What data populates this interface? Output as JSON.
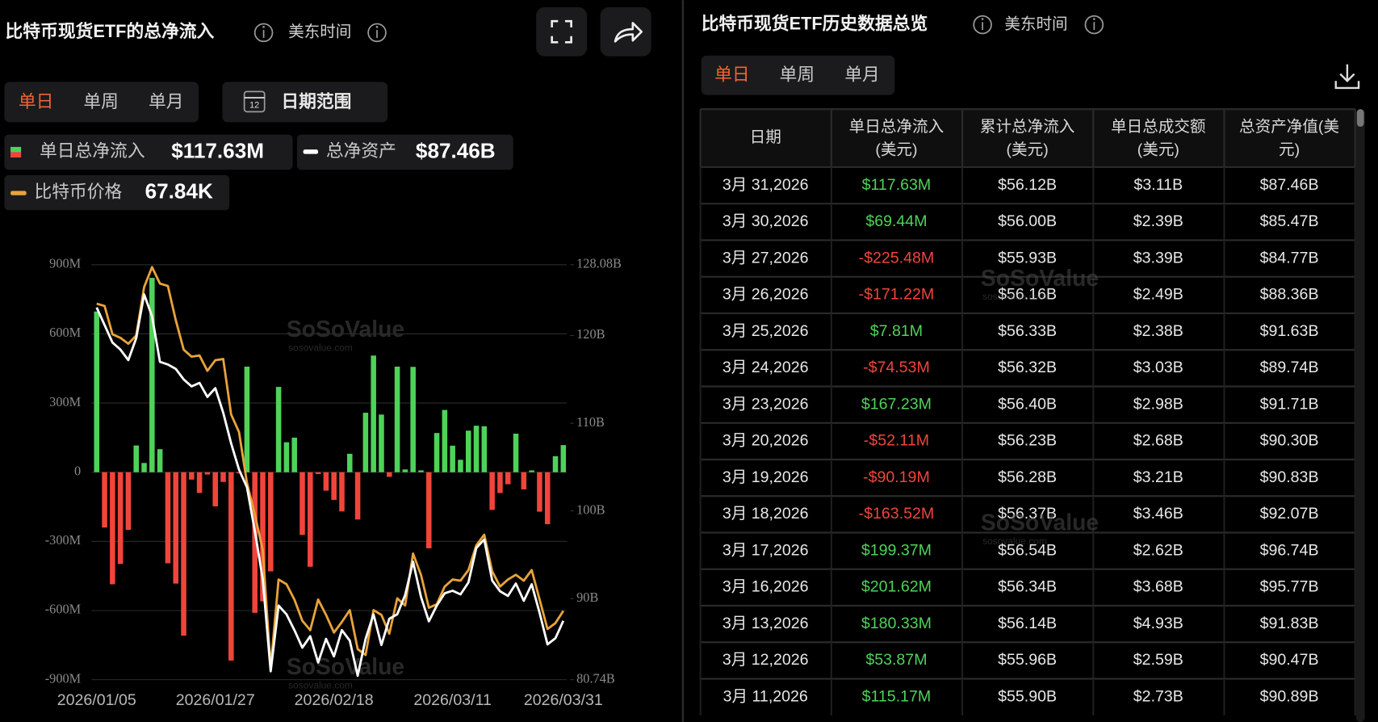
{
  "left_panel": {
    "title": "比特币现货ETF的总净流入",
    "timezone": "美东时间",
    "tabs": [
      "单日",
      "单周",
      "单月"
    ],
    "date_range": "日期范围",
    "watermark": "SoSoValue",
    "watermark_url": "sosovalue.com"
  },
  "chart_data": {
    "type": "bar-line",
    "categories": [
      "2026/01/05",
      null,
      null,
      null,
      null,
      null,
      null,
      null,
      null,
      null,
      null,
      null,
      null,
      null,
      null,
      "2026/01/27",
      null,
      null,
      null,
      null,
      null,
      null,
      null,
      null,
      null,
      null,
      null,
      null,
      null,
      null,
      "2026/02/18",
      null,
      null,
      null,
      null,
      null,
      null,
      null,
      null,
      null,
      null,
      null,
      null,
      null,
      null,
      "2026/03/11",
      null,
      null,
      null,
      null,
      null,
      null,
      null,
      null,
      null,
      null,
      null,
      null,
      null,
      "2026/03/31"
    ],
    "series": [
      {
        "name": "单日总净流入",
        "type": "bar",
        "legend_value": "$117.63M",
        "color": "#4fd25a",
        "negative_color": "#f0453b",
        "values": [
          697,
          -240,
          -486,
          -398,
          -250,
          116,
          40,
          843,
          100,
          -395,
          -483,
          -709,
          -32,
          -90,
          -10,
          -148,
          -42,
          -817,
          -5,
          458,
          -610,
          -560,
          -430,
          370,
          130,
          150,
          -272,
          -410,
          -8,
          -80,
          -120,
          -170,
          80,
          -205,
          258,
          506,
          250,
          -20,
          458,
          12,
          457,
          8,
          -330,
          170,
          270,
          115.17,
          53.87,
          180.33,
          201.62,
          199.37,
          -163.52,
          -90.19,
          -52.11,
          167.23,
          -74.53,
          7.81,
          -171.22,
          -225.48,
          69.44,
          117.63
        ]
      },
      {
        "name": "总净资产",
        "type": "line",
        "axis": "y2",
        "legend_value": "$87.46B",
        "color": "#ffffff",
        "values": [
          123.2,
          121.2,
          119.2,
          118.4,
          117.2,
          119.7,
          124.7,
          122.2,
          117.0,
          116.7,
          116.2,
          115.0,
          114.2,
          114.6,
          113.0,
          114.0,
          111.2,
          107.7,
          104.7,
          102.7,
          97.7,
          92.2,
          81.7,
          89.2,
          88.2,
          86.4,
          84.4,
          85.7,
          82.7,
          85.4,
          83.4,
          86.4,
          85.2,
          81.2,
          85.4,
          88.2,
          84.7,
          87.7,
          88.2,
          90.4,
          94.2,
          90.2,
          87.4,
          89.2,
          90.6,
          90.89,
          90.47,
          91.83,
          95.77,
          96.74,
          92.07,
          90.83,
          90.3,
          91.71,
          89.74,
          91.63,
          88.36,
          84.77,
          85.47,
          87.46
        ]
      },
      {
        "name": "比特币价格",
        "type": "line",
        "axis": "y3",
        "legend_value": "67.84K",
        "color": "#e8a33a",
        "values": [
          93.9,
          93.7,
          91.3,
          91.0,
          90.5,
          91.2,
          95.3,
          97.0,
          95.6,
          95.4,
          92.5,
          90.0,
          89.4,
          89.5,
          88.2,
          89.1,
          89.2,
          84.5,
          83.0,
          78.7,
          76.0,
          73.0,
          63.0,
          70.5,
          70.1,
          68.8,
          67.0,
          66.2,
          68.8,
          67.5,
          66.0,
          66.9,
          67.9,
          64.6,
          64.1,
          67.9,
          67.5,
          65.9,
          68.9,
          68.3,
          72.7,
          70.9,
          68.1,
          68.4,
          69.9,
          70.5,
          70.4,
          71.3,
          73.4,
          74.3,
          71.2,
          69.9,
          70.5,
          70.9,
          70.4,
          71.3,
          68.8,
          66.3,
          66.8,
          67.84
        ]
      }
    ],
    "ylim": [
      -900,
      900
    ],
    "yticks": [
      {
        "value": -900,
        "label": "-900M"
      },
      {
        "value": -600,
        "label": "-600M"
      },
      {
        "value": -300,
        "label": "-300M"
      },
      0,
      {
        "value": 300,
        "label": "300M"
      },
      {
        "value": 600,
        "label": "600M"
      },
      {
        "value": 900,
        "label": "900M"
      }
    ],
    "y2lim": [
      80.74,
      128.08
    ],
    "y2ticks": [
      {
        "value": 80.74,
        "label": "80.74B"
      },
      {
        "value": 90,
        "label": "90B"
      },
      {
        "value": 100,
        "label": "100B"
      },
      {
        "value": 110,
        "label": "110B"
      },
      {
        "value": 120,
        "label": "120B"
      },
      {
        "value": 128.08,
        "label": "128.08B"
      }
    ],
    "y3lim": [
      62,
      97.2
    ],
    "grid": true
  },
  "right_panel": {
    "title": "比特币现货ETF历史数据总览",
    "timezone": "美东时间",
    "tabs": [
      "单日",
      "单周",
      "单月"
    ],
    "table": {
      "columns": [
        [
          "日期"
        ],
        [
          "单日总净流入",
          "(美元)"
        ],
        [
          "累计总净流入",
          "(美元)"
        ],
        [
          "单日总成交额",
          "(美元)"
        ],
        [
          "总资产净值(美",
          "元)"
        ]
      ],
      "rows": [
        [
          "3月 31,2026",
          "$117.63M",
          "$56.12B",
          "$3.11B",
          "$87.46B"
        ],
        [
          "3月 30,2026",
          "$69.44M",
          "$56.00B",
          "$2.39B",
          "$85.47B"
        ],
        [
          "3月 27,2026",
          "-$225.48M",
          "$55.93B",
          "$3.39B",
          "$84.77B"
        ],
        [
          "3月 26,2026",
          "-$171.22M",
          "$56.16B",
          "$2.49B",
          "$88.36B"
        ],
        [
          "3月 25,2026",
          "$7.81M",
          "$56.33B",
          "$2.38B",
          "$91.63B"
        ],
        [
          "3月 24,2026",
          "-$74.53M",
          "$56.32B",
          "$3.03B",
          "$89.74B"
        ],
        [
          "3月 23,2026",
          "$167.23M",
          "$56.40B",
          "$2.98B",
          "$91.71B"
        ],
        [
          "3月 20,2026",
          "-$52.11M",
          "$56.23B",
          "$2.68B",
          "$90.30B"
        ],
        [
          "3月 19,2026",
          "-$90.19M",
          "$56.28B",
          "$3.21B",
          "$90.83B"
        ],
        [
          "3月 18,2026",
          "-$163.52M",
          "$56.37B",
          "$3.46B",
          "$92.07B"
        ],
        [
          "3月 17,2026",
          "$199.37M",
          "$56.54B",
          "$2.62B",
          "$96.74B"
        ],
        [
          "3月 16,2026",
          "$201.62M",
          "$56.34B",
          "$3.68B",
          "$95.77B"
        ],
        [
          "3月 13,2026",
          "$180.33M",
          "$56.14B",
          "$4.93B",
          "$91.83B"
        ],
        [
          "3月 12,2026",
          "$53.87M",
          "$55.96B",
          "$2.59B",
          "$90.47B"
        ],
        [
          "3月 11,2026",
          "$115.17M",
          "$55.90B",
          "$2.73B",
          "$90.89B"
        ]
      ]
    }
  }
}
